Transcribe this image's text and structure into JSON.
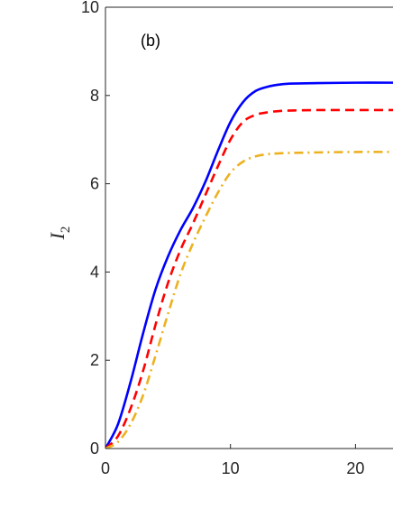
{
  "chart_data": {
    "type": "line",
    "panel_label": "(b)",
    "ylabel": {
      "symbol": "I",
      "subscript": "2"
    },
    "xlabel": "",
    "xlim": [
      0,
      23
    ],
    "ylim": [
      0,
      10
    ],
    "x_ticks": [
      "0",
      "10",
      "20"
    ],
    "y_ticks": [
      "0",
      "2",
      "4",
      "6",
      "8",
      "10"
    ],
    "grid": false,
    "series": [
      {
        "style": "solid",
        "color": "#0000ff",
        "x": [
          0,
          1,
          2,
          3,
          4,
          5,
          6,
          7,
          8,
          9,
          10,
          11,
          12,
          13,
          14,
          15,
          17,
          20,
          23
        ],
        "y": [
          0,
          0.55,
          1.5,
          2.6,
          3.6,
          4.35,
          4.95,
          5.45,
          6.05,
          6.75,
          7.4,
          7.85,
          8.1,
          8.2,
          8.25,
          8.27,
          8.28,
          8.29,
          8.29
        ]
      },
      {
        "style": "dashed",
        "color": "#ff0000",
        "x": [
          0,
          1,
          2,
          3,
          4,
          5,
          6,
          7,
          8,
          9,
          10,
          11,
          12,
          13,
          14,
          15,
          17,
          20,
          23
        ],
        "y": [
          0,
          0.28,
          0.9,
          1.75,
          2.8,
          3.75,
          4.5,
          5.1,
          5.75,
          6.4,
          7.0,
          7.4,
          7.56,
          7.62,
          7.65,
          7.66,
          7.67,
          7.67,
          7.67
        ]
      },
      {
        "style": "dashdot",
        "color": "#edb120",
        "x": [
          0,
          1,
          2,
          3,
          4,
          5,
          6,
          7,
          8,
          9,
          10,
          11,
          12,
          13,
          14,
          15,
          17,
          20,
          23
        ],
        "y": [
          0,
          0.15,
          0.55,
          1.2,
          2.1,
          3.05,
          3.95,
          4.65,
          5.25,
          5.8,
          6.25,
          6.5,
          6.62,
          6.67,
          6.69,
          6.7,
          6.71,
          6.72,
          6.72
        ]
      }
    ]
  }
}
